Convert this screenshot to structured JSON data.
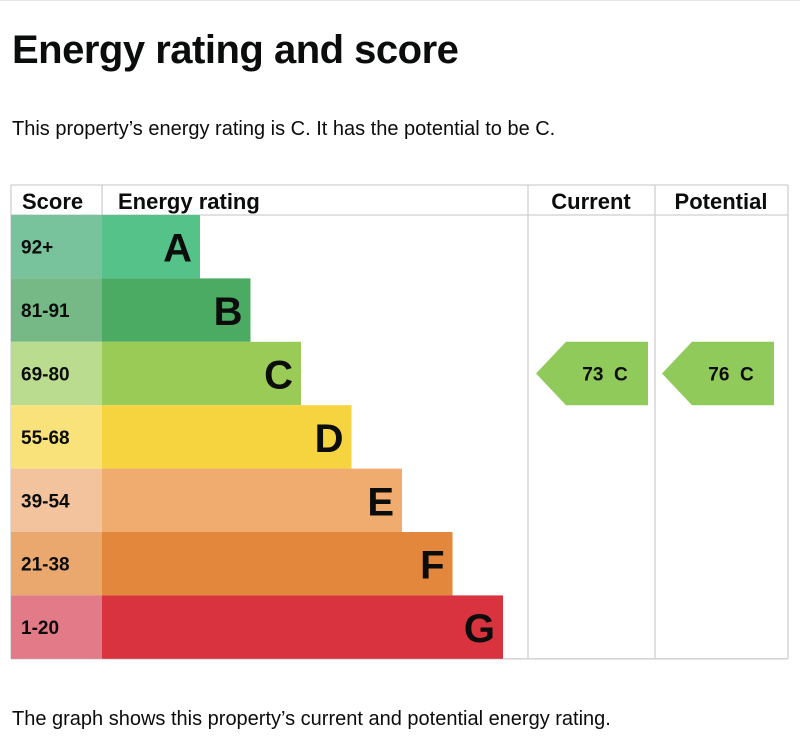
{
  "title": "Energy rating and score",
  "intro": "This property’s energy rating is C. It has the potential to be C.",
  "footer": "The graph shows this property’s current and potential energy rating.",
  "chart_data": {
    "type": "bar",
    "headers": {
      "score": "Score",
      "rating": "Energy rating",
      "current": "Current",
      "potential": "Potential"
    },
    "bands": [
      {
        "letter": "A",
        "range": "92+",
        "color": "#55c389",
        "tint": "#79c39c"
      },
      {
        "letter": "B",
        "range": "81-91",
        "color": "#4cab63",
        "tint": "#76b986"
      },
      {
        "letter": "C",
        "range": "69-80",
        "color": "#9acb57",
        "tint": "#b9dc8e"
      },
      {
        "letter": "D",
        "range": "55-68",
        "color": "#f6d43f",
        "tint": "#f9e27a"
      },
      {
        "letter": "E",
        "range": "39-54",
        "color": "#f0ab6f",
        "tint": "#f3c39d"
      },
      {
        "letter": "F",
        "range": "21-38",
        "color": "#e2873b",
        "tint": "#eaa86f"
      },
      {
        "letter": "G",
        "range": "1-20",
        "color": "#d8333f",
        "tint": "#e27a87"
      }
    ],
    "current": {
      "score": 73,
      "band": "C",
      "label": "73  C"
    },
    "potential": {
      "score": 76,
      "band": "C",
      "label": "76  C"
    },
    "arrow_color": "#8fca5a"
  }
}
